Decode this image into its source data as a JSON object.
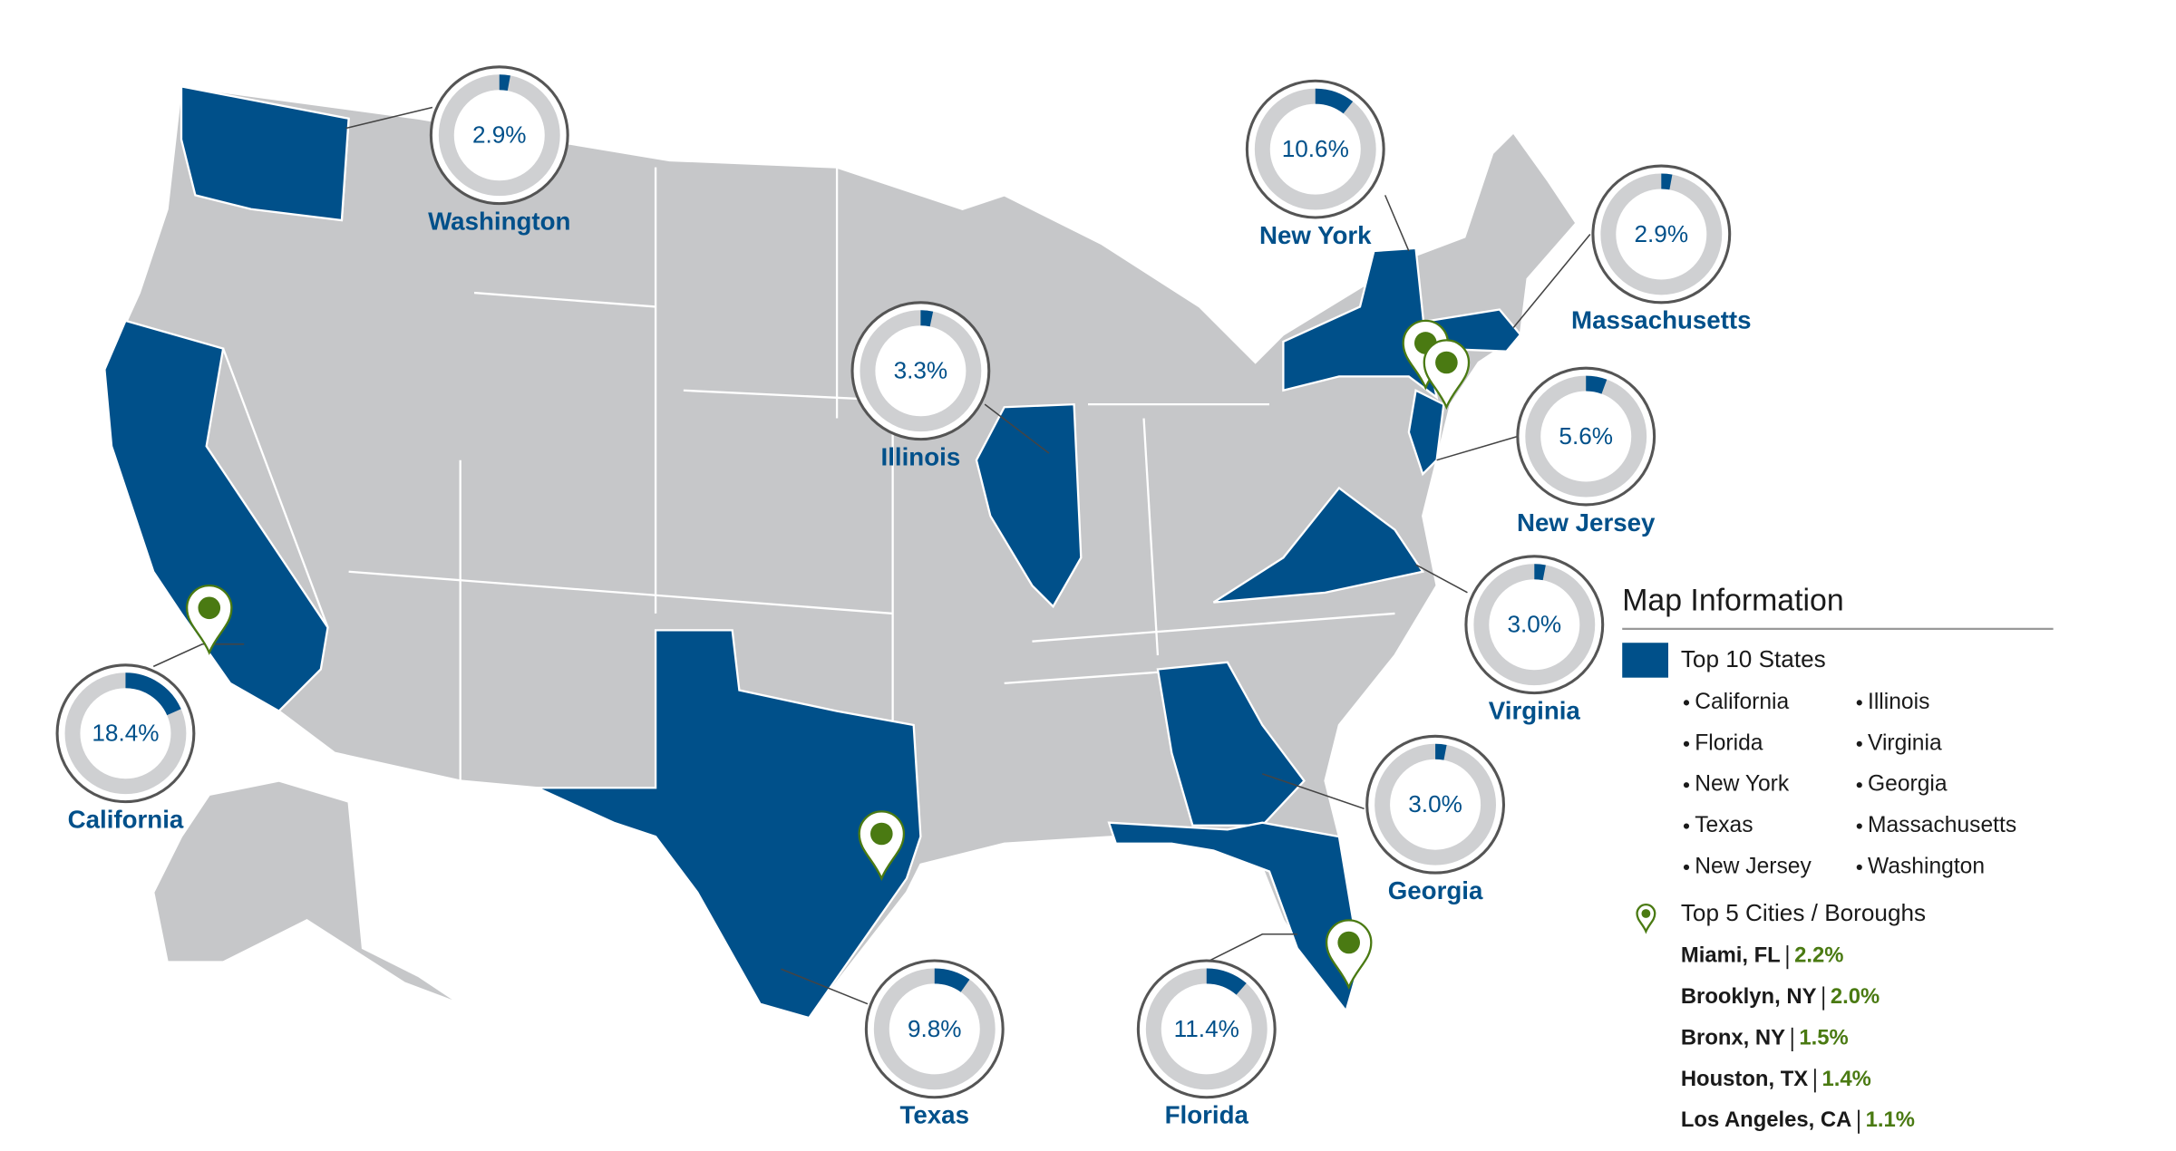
{
  "states": [
    {
      "name": "Washington",
      "value": 2.9,
      "label": "2.9%"
    },
    {
      "name": "New York",
      "value": 10.6,
      "label": "10.6%"
    },
    {
      "name": "Massachusetts",
      "value": 2.9,
      "label": "2.9%"
    },
    {
      "name": "Illinois",
      "value": 3.3,
      "label": "3.3%"
    },
    {
      "name": "New Jersey",
      "value": 5.6,
      "label": "5.6%"
    },
    {
      "name": "Virginia",
      "value": 3.0,
      "label": "3.0%"
    },
    {
      "name": "California",
      "value": 18.4,
      "label": "18.4%"
    },
    {
      "name": "Georgia",
      "value": 3.0,
      "label": "3.0%"
    },
    {
      "name": "Texas",
      "value": 9.8,
      "label": "9.8%"
    },
    {
      "name": "Florida",
      "value": 11.4,
      "label": "11.4%"
    }
  ],
  "legend": {
    "title": "Map Information",
    "states_heading": "Top 10 States",
    "states_list": [
      [
        "California",
        "Florida",
        "New York",
        "Texas",
        "New Jersey"
      ],
      [
        "Illinois",
        "Virginia",
        "Georgia",
        "Massachusetts",
        "Washington"
      ]
    ],
    "cities_heading": "Top 5 Cities / Boroughs",
    "cities": [
      {
        "name": "Miami, FL",
        "value": 2.2,
        "label": "2.2%"
      },
      {
        "name": "Brooklyn, NY",
        "value": 2.0,
        "label": "2.0%"
      },
      {
        "name": "Bronx, NY",
        "value": 1.5,
        "label": "1.5%"
      },
      {
        "name": "Houston, TX",
        "value": 1.4,
        "label": "1.4%"
      },
      {
        "name": "Los Angeles, CA",
        "value": 1.1,
        "label": "1.1%"
      }
    ]
  }
}
